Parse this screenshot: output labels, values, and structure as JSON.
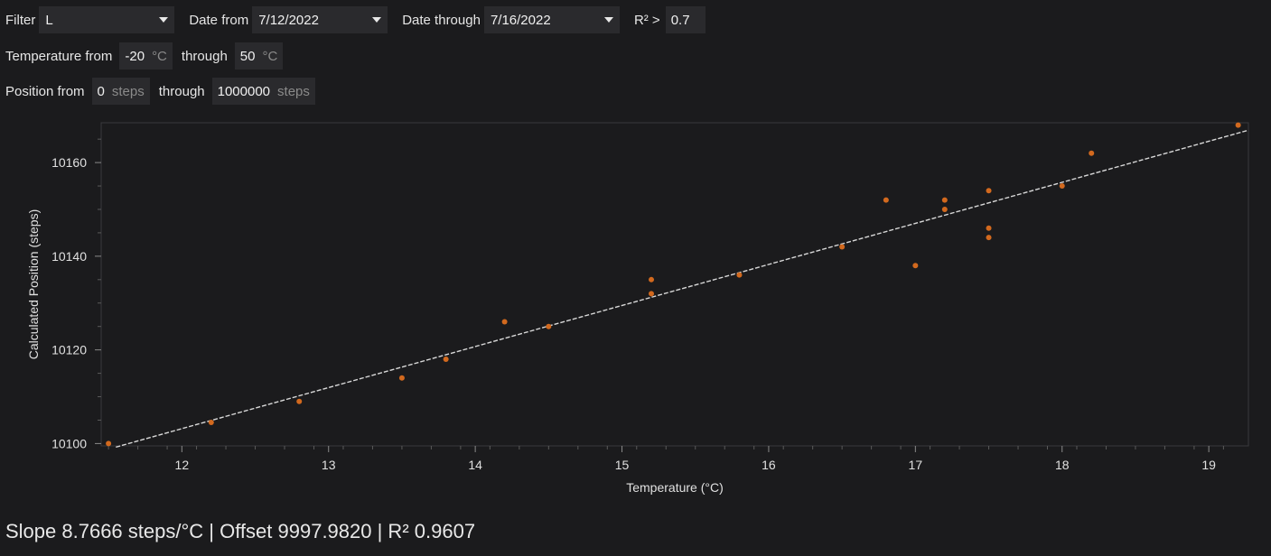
{
  "filters": {
    "filter_label": "Filter",
    "filter_value": "L",
    "date_from_label": "Date from",
    "date_from_value": "7/12/2022",
    "date_through_label": "Date through",
    "date_through_value": "7/16/2022",
    "r2_label": "R² >",
    "r2_value": "0.7",
    "temp_from_label": "Temperature from",
    "temp_from_value": "-20",
    "temp_unit": "°C",
    "temp_through_label": "through",
    "temp_through_value": "50",
    "pos_from_label": "Position from",
    "pos_from_value": "0",
    "pos_unit": "steps",
    "pos_through_label": "through",
    "pos_through_value": "1000000"
  },
  "chart_data": {
    "type": "scatter",
    "xlabel": "Temperature (°C)",
    "ylabel": "Calculated Position (steps)",
    "xlim": [
      11.45,
      19.27
    ],
    "ylim": [
      10099.5,
      10168.5
    ],
    "xticks": [
      12,
      13,
      14,
      15,
      16,
      17,
      18,
      19
    ],
    "yticks": [
      10100,
      10120,
      10140,
      10160
    ],
    "points": [
      [
        11.5,
        10100
      ],
      [
        12.2,
        10104.5
      ],
      [
        12.8,
        10109
      ],
      [
        13.5,
        10114
      ],
      [
        13.8,
        10118
      ],
      [
        14.2,
        10126
      ],
      [
        14.5,
        10125
      ],
      [
        15.2,
        10135
      ],
      [
        15.2,
        10132
      ],
      [
        15.8,
        10136
      ],
      [
        16.5,
        10142
      ],
      [
        16.8,
        10152
      ],
      [
        17.0,
        10138
      ],
      [
        17.2,
        10152
      ],
      [
        17.2,
        10150
      ],
      [
        17.5,
        10154
      ],
      [
        17.5,
        10146
      ],
      [
        17.5,
        10144
      ],
      [
        18.0,
        10155
      ],
      [
        18.2,
        10162
      ],
      [
        19.2,
        10168
      ]
    ],
    "fit": {
      "slope": 8.7666,
      "offset": 9997.982
    },
    "point_color": "#d2691e",
    "fit_color": "#d8d8d8",
    "grid": false
  },
  "summary": {
    "text": "Slope 8.7666 steps/°C  |  Offset 9997.9820  |  R² 0.9607"
  }
}
